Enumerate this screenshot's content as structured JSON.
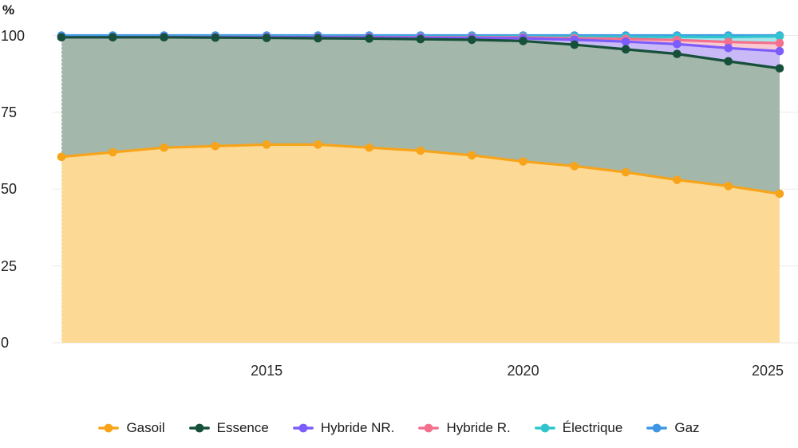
{
  "chart_data": {
    "type": "area",
    "stacked": true,
    "percent": true,
    "title": "",
    "y_axis_unit": "%",
    "xlabel": "",
    "ylabel": "%",
    "ylim": [
      0,
      100
    ],
    "grid": "horizontal",
    "legend_position": "bottom",
    "x": [
      2011,
      2012,
      2013,
      2014,
      2015,
      2016,
      2017,
      2018,
      2019,
      2020,
      2021,
      2022,
      2023,
      2024,
      2025
    ],
    "x_tick_labels": [
      "2015",
      "2020",
      "2025"
    ],
    "x_tick_years": [
      2015,
      2020,
      2025
    ],
    "y_ticks": [
      0,
      25,
      50,
      75,
      100
    ],
    "series": [
      {
        "name": "Gasoil",
        "line_color": "#F7A41A",
        "fill_color": "#FCDA96",
        "values": [
          60.5,
          62,
          63.5,
          64,
          64.5,
          64.5,
          63.5,
          62.5,
          61,
          59,
          57.5,
          55.5,
          53,
          51,
          48.5
        ]
      },
      {
        "name": "Essence",
        "line_color": "#17503A",
        "fill_color": "#A3B7AB",
        "values": [
          38.9,
          37.4,
          35.9,
          35.3,
          34.7,
          34.6,
          35.5,
          36.3,
          37.6,
          39.2,
          39.5,
          40.0,
          41.0,
          40.6,
          40.8
        ]
      },
      {
        "name": "Hybride NR.",
        "line_color": "#7C5CFA",
        "fill_color": "#C9BAF7",
        "values": [
          0.05,
          0.05,
          0.1,
          0.15,
          0.25,
          0.35,
          0.4,
          0.5,
          0.6,
          0.9,
          1.6,
          2.5,
          3.2,
          4.3,
          5.6
        ]
      },
      {
        "name": "Hybride R.",
        "line_color": "#F4718E",
        "fill_color": "#F9C9D2",
        "values": [
          0,
          0,
          0,
          0.05,
          0.05,
          0.05,
          0.1,
          0.15,
          0.2,
          0.3,
          0.5,
          0.9,
          1.3,
          2.0,
          2.6
        ]
      },
      {
        "name": "Électrique",
        "line_color": "#30C5CE",
        "fill_color": "#A6E6EA",
        "values": [
          0.05,
          0.05,
          0.05,
          0.05,
          0.1,
          0.1,
          0.1,
          0.15,
          0.2,
          0.25,
          0.45,
          0.65,
          1.05,
          1.6,
          2.2
        ]
      },
      {
        "name": "Gaz",
        "line_color": "#3F97E4",
        "fill_color": "#B8D8F4",
        "values": [
          0.5,
          0.5,
          0.45,
          0.45,
          0.4,
          0.4,
          0.4,
          0.4,
          0.4,
          0.35,
          0.45,
          0.45,
          0.45,
          0.5,
          0.3
        ]
      }
    ],
    "grid_color": "#EAEAE8",
    "axis_text_color": "#1e1e1e"
  }
}
